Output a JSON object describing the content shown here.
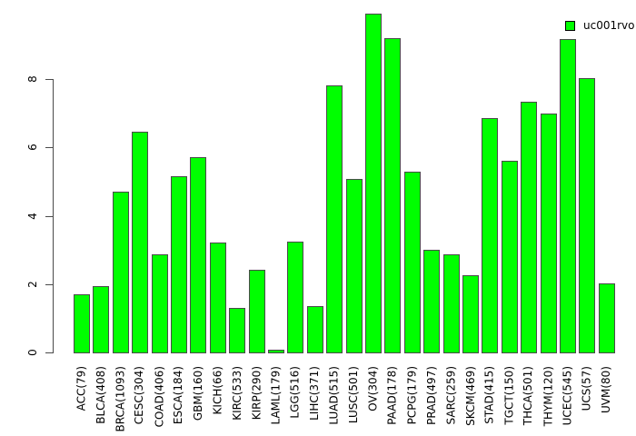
{
  "chart_data": {
    "type": "bar",
    "title": "",
    "xlabel": "",
    "ylabel": "",
    "categories": [
      "ACC(79)",
      "BLCA(408)",
      "BRCA(1093)",
      "CESC(304)",
      "COAD(406)",
      "ESCA(184)",
      "GBM(160)",
      "KICH(66)",
      "KIRC(533)",
      "KIRP(290)",
      "LAML(179)",
      "LGG(516)",
      "LIHC(371)",
      "LUAD(515)",
      "LUSC(501)",
      "OV(304)",
      "PAAD(178)",
      "PCPG(179)",
      "PRAD(497)",
      "SARC(259)",
      "SKCM(469)",
      "STAD(415)",
      "TGCT(150)",
      "THCA(501)",
      "THYM(120)",
      "UCEC(545)",
      "UCS(57)",
      "UVM(80)"
    ],
    "values": [
      1.72,
      1.96,
      4.73,
      6.49,
      2.89,
      5.18,
      5.75,
      3.25,
      1.34,
      2.46,
      0.1,
      3.26,
      1.38,
      7.85,
      5.11,
      9.95,
      9.23,
      5.31,
      3.04,
      2.9,
      2.3,
      6.9,
      5.64,
      7.37,
      7.01,
      9.19,
      8.06,
      2.05
    ],
    "yticks": [
      0,
      2,
      4,
      6,
      8
    ],
    "ylim": [
      0,
      10
    ],
    "grid": false,
    "legend": {
      "position": "top-right",
      "entries": [
        {
          "label": "uc001rvo",
          "color": "#00ff00"
        }
      ]
    },
    "bar_color": "#00ff00",
    "bar_border_color": "#4a4a4a",
    "background_color": "#ffffff",
    "label_rotation_deg": 90
  }
}
